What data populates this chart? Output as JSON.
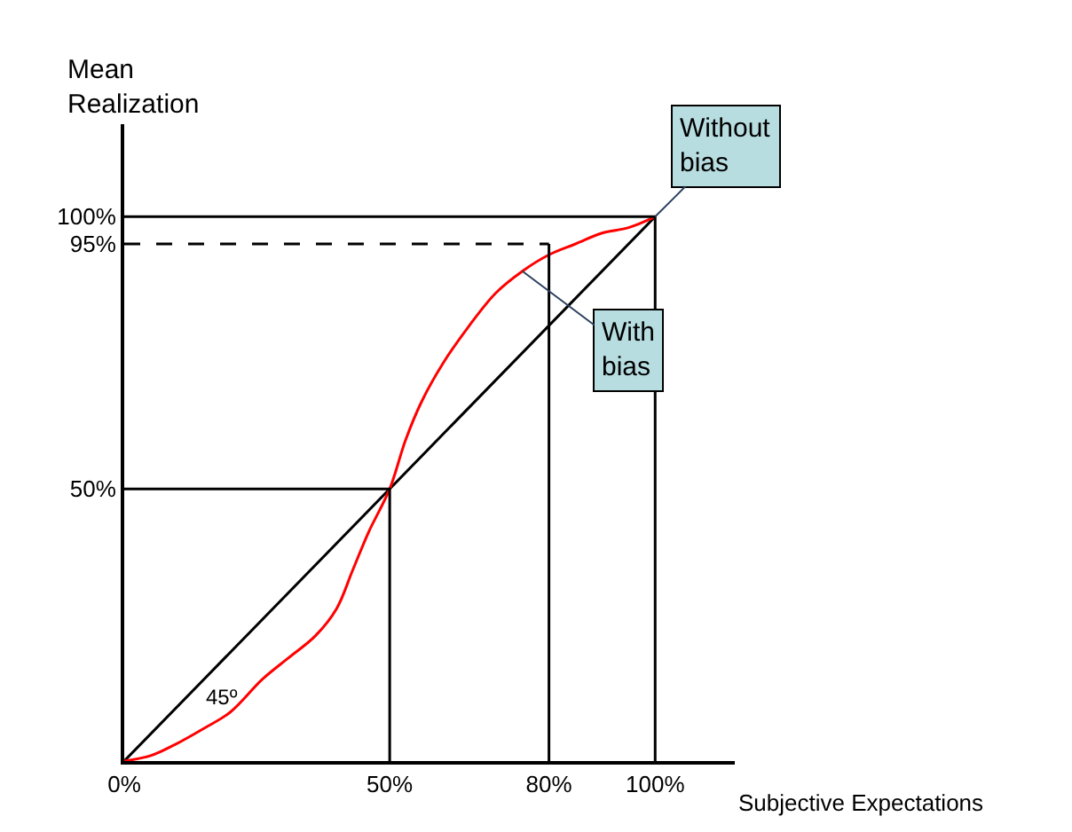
{
  "chart_data": {
    "type": "line",
    "xlabel": "Subjective Expectations",
    "ylabel": "Mean Realization",
    "xlim": [
      0,
      115
    ],
    "ylim": [
      0,
      117
    ],
    "xticks": [
      {
        "value": 0,
        "label": "0%"
      },
      {
        "value": 50,
        "label": "50%"
      },
      {
        "value": 80,
        "label": "80%"
      },
      {
        "value": 100,
        "label": "100%"
      }
    ],
    "yticks": [
      {
        "value": 50,
        "label": "50%"
      },
      {
        "value": 95,
        "label": "95%"
      },
      {
        "value": 100,
        "label": "100%"
      }
    ],
    "marker": "none",
    "series": [
      {
        "color": "#000000",
        "x": [
          0,
          100
        ],
        "values": [
          0,
          100
        ]
      },
      {
        "color": "#ff0000",
        "x": [
          0,
          5,
          9.5,
          15,
          20,
          26,
          31,
          36,
          40,
          43,
          46,
          50,
          53,
          56,
          60,
          65,
          70,
          75,
          80,
          85,
          90,
          95,
          100
        ],
        "values": [
          0,
          1,
          3,
          6,
          9,
          15,
          19,
          23,
          28,
          35,
          42,
          50,
          59,
          66,
          73,
          80,
          86,
          90,
          93,
          95,
          97,
          98,
          100
        ]
      },
      {
        "color": "#000000",
        "x": [
          0,
          50,
          50
        ],
        "values": [
          50,
          50,
          0
        ]
      },
      {
        "color": "#000000",
        "line_style": "dashed",
        "x": [
          0,
          80
        ],
        "values": [
          95,
          95
        ]
      },
      {
        "color": "#000000",
        "x": [
          80,
          80
        ],
        "values": [
          95,
          0
        ]
      },
      {
        "color": "#000000",
        "x": [
          0,
          100,
          100
        ],
        "values": [
          100,
          100,
          0
        ]
      }
    ],
    "annotations": [
      {
        "text": "Without bias",
        "x": 100,
        "y": 100
      },
      {
        "text": "With bias",
        "x": 75,
        "y": 90
      },
      "45º"
    ]
  }
}
